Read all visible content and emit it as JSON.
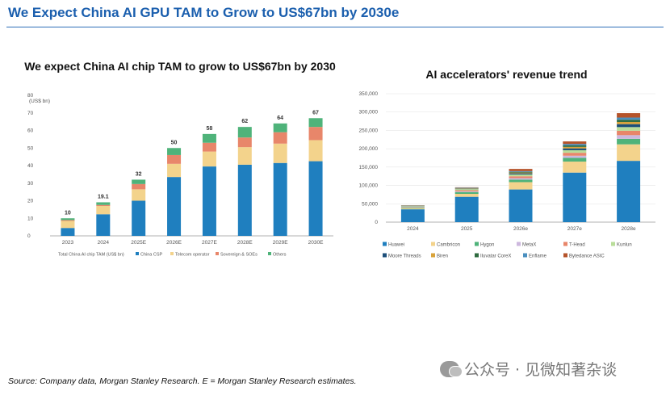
{
  "page": {
    "title": "We Expect China AI GPU TAM to Grow to US$67bn by 2030e",
    "source": "Source: Company data, Morgan Stanley Research. E = Morgan Stanley Research estimates.",
    "watermark": "公众号 · 见微知著杂谈",
    "watermark_icon": "wechat-icon"
  },
  "chart_data": [
    {
      "type": "bar",
      "stacked": true,
      "title": "We expect China AI chip TAM to grow to US$67bn by 2030",
      "unit_label": "(US$ bn)",
      "categories": [
        "2023",
        "2024",
        "2025E",
        "2026E",
        "2027E",
        "2028E",
        "2029E",
        "2030E"
      ],
      "totals": [
        "10",
        "19.1",
        "32",
        "50",
        "58",
        "62",
        "64",
        "67"
      ],
      "ylim": [
        0,
        80
      ],
      "yticks": [
        "0",
        "10",
        "20",
        "30",
        "40",
        "50",
        "60",
        "70",
        "80"
      ],
      "legend": [
        "Total China AI chip TAM (US$ bn)",
        "China CSP",
        "Telecom operator",
        "Sovereign & SOEs",
        "Others"
      ],
      "legend_position": "bottom",
      "series": [
        {
          "name": "China CSP",
          "color": "#1f7fbf",
          "values": [
            4.5,
            12.3,
            20,
            33.5,
            39.5,
            40.5,
            41.5,
            42.5
          ]
        },
        {
          "name": "Telecom operator",
          "color": "#f3d38c",
          "values": [
            4,
            4.7,
            6.5,
            7.5,
            8.5,
            10,
            11,
            12
          ]
        },
        {
          "name": "Sovereign & SOEs",
          "color": "#e8866a",
          "values": [
            0.5,
            0.6,
            3,
            5,
            5,
            5.5,
            6.5,
            7.5
          ]
        },
        {
          "name": "Others",
          "color": "#4fb37a",
          "values": [
            1,
            1.5,
            2.5,
            4,
            5,
            6,
            5,
            5
          ]
        }
      ]
    },
    {
      "type": "bar",
      "stacked": true,
      "title": "AI accelerators' revenue trend",
      "categories": [
        "2024",
        "2025",
        "2026e",
        "2027e",
        "2028e"
      ],
      "ylim": [
        0,
        350000
      ],
      "yticks": [
        "0",
        "50,000",
        "100,000",
        "150,000",
        "200,000",
        "250,000",
        "300,000",
        "350,000"
      ],
      "legend": [
        "Huawei",
        "Cambricon",
        "Hygon",
        "MetaX",
        "T-Head",
        "Kunlun",
        "Moore Threads",
        "Biren",
        "Iluvatar CoreX",
        "Enflame",
        "Bytedance ASIC"
      ],
      "legend_position": "bottom",
      "series": [
        {
          "name": "Huawei",
          "color": "#1f7fbf",
          "values": [
            35000,
            69000,
            89000,
            135000,
            167000
          ]
        },
        {
          "name": "Cambricon",
          "color": "#f3d38c",
          "values": [
            3000,
            8000,
            20000,
            30000,
            45000
          ]
        },
        {
          "name": "Hygon",
          "color": "#4fb37a",
          "values": [
            2000,
            5000,
            7000,
            10000,
            15000
          ]
        },
        {
          "name": "MetaX",
          "color": "#cdb8de",
          "values": [
            1000,
            2000,
            4000,
            6000,
            10000
          ]
        },
        {
          "name": "T-Head",
          "color": "#e8866a",
          "values": [
            1000,
            3000,
            5000,
            8000,
            12000
          ]
        },
        {
          "name": "Kunlun",
          "color": "#b9dd9a",
          "values": [
            1500,
            3000,
            5000,
            7000,
            10000
          ]
        },
        {
          "name": "Moore Threads",
          "color": "#1d4f7a",
          "values": [
            500,
            1000,
            3000,
            5000,
            8000
          ]
        },
        {
          "name": "Biren",
          "color": "#d9a33a",
          "values": [
            500,
            1000,
            2000,
            4000,
            6000
          ]
        },
        {
          "name": "Iluvatar CoreX",
          "color": "#2f6b3f",
          "values": [
            500,
            1000,
            2000,
            4000,
            6000
          ]
        },
        {
          "name": "Enflame",
          "color": "#4a8fbf",
          "values": [
            500,
            1000,
            2000,
            4000,
            6000
          ]
        },
        {
          "name": "Bytedance ASIC",
          "color": "#b5532a",
          "values": [
            500,
            1000,
            6000,
            7000,
            12000
          ]
        }
      ]
    }
  ]
}
